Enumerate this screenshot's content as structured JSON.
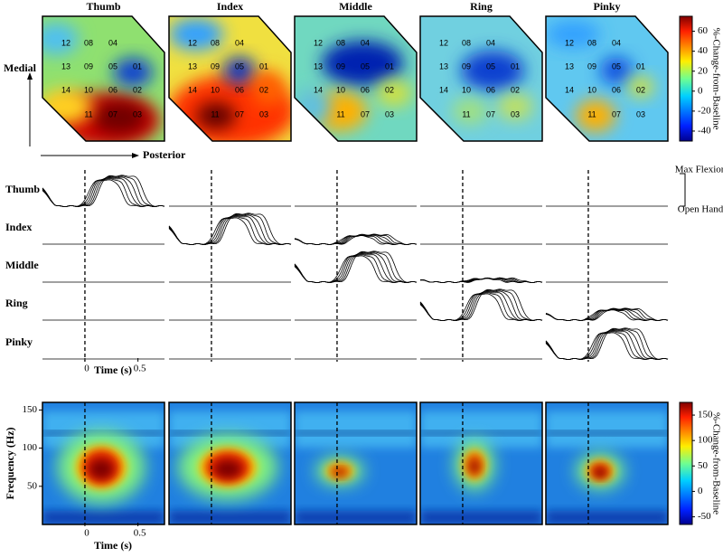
{
  "chart_data": {
    "type": "figure",
    "fingers": [
      "Thumb",
      "Index",
      "Middle",
      "Ring",
      "Pinky"
    ],
    "electrodes": [
      [
        "12",
        "08",
        "04"
      ],
      [
        "13",
        "09",
        "05",
        "01"
      ],
      [
        "14",
        "10",
        "06",
        "02"
      ],
      [
        "11",
        "07",
        "03"
      ]
    ],
    "medial_label": "Medial",
    "posterior_label": "Posterior",
    "max_label": "Max Flexion",
    "open_label": "Open Hand",
    "xlabel": "Time (s)",
    "xlim": [
      -0.4,
      0.75
    ],
    "xticks": [
      0,
      0.5
    ],
    "ylabel": "Frequency (Hz)",
    "ylim": [
      0,
      160
    ],
    "yticks": [
      50,
      100,
      150
    ],
    "colorbar_label": "%-Change-from-Baseline",
    "clim": [
      -50,
      75
    ],
    "cticks": [
      60,
      40,
      20,
      0,
      -20,
      -40
    ],
    "clim2": [
      -65,
      175
    ],
    "cticks2": [
      150,
      100,
      50,
      0,
      -50
    ]
  }
}
